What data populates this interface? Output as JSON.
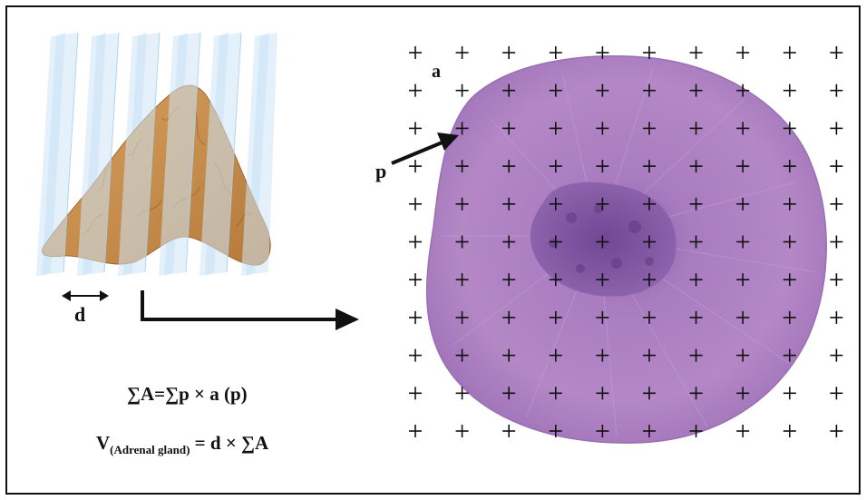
{
  "labels": {
    "slice_spacing": "d",
    "grid_area": "a",
    "grid_point": "p"
  },
  "formulas": {
    "area_lhs": "∑A",
    "area_rhs": "=∑p × a (p)",
    "volume_V": "V",
    "volume_sub": "(Adrenal gland)",
    "volume_rhs": " = d × ∑A"
  },
  "grid": {
    "columns": 10,
    "rows": 11,
    "symbol": "+"
  },
  "colors": {
    "tissue": "#b07cc0",
    "tissue_dark": "#7a4f9a",
    "gland": "#c8904a",
    "plane": "#bfe0f5",
    "ink": "#111111"
  }
}
